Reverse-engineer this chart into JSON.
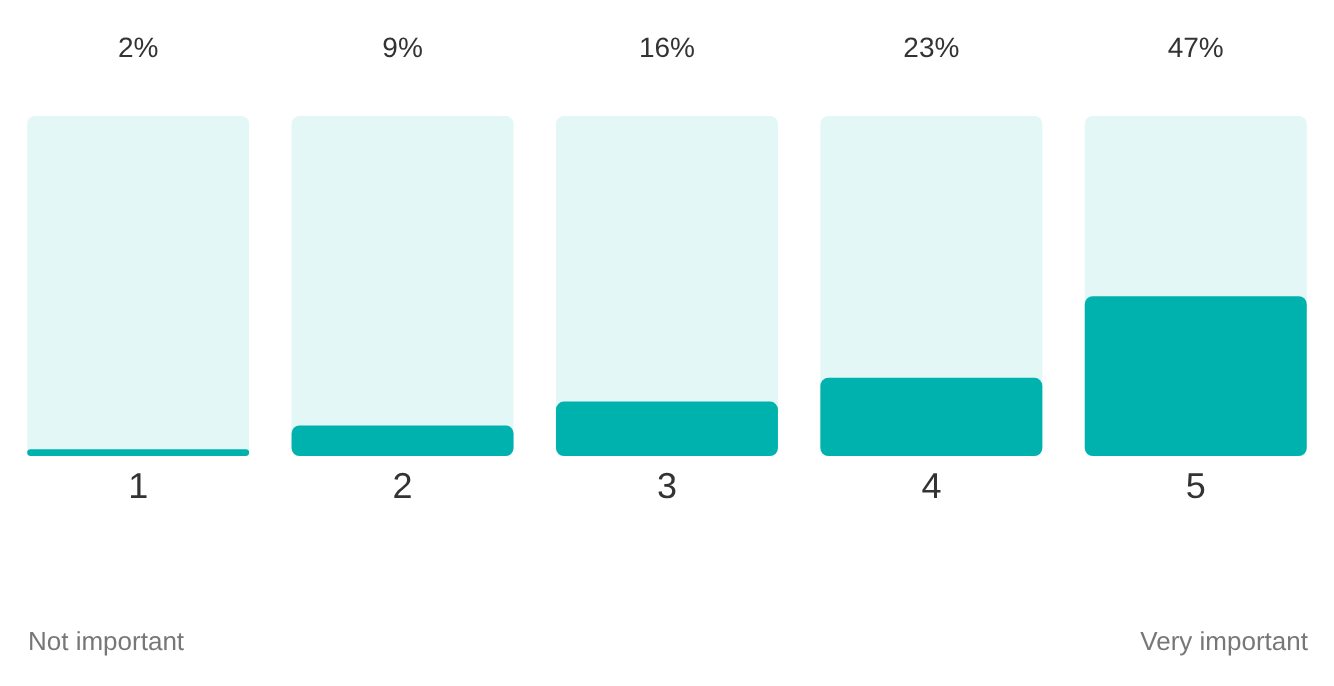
{
  "chart_data": {
    "type": "bar",
    "categories": [
      "1",
      "2",
      "3",
      "4",
      "5"
    ],
    "values": [
      2,
      9,
      16,
      23,
      47
    ],
    "color": "#00b2ad",
    "ylim": [
      0,
      100
    ],
    "value_labels": [
      "2%",
      "9%",
      "16%",
      "23%",
      "47%"
    ],
    "annotations": [
      "Not important",
      "Very important"
    ]
  }
}
